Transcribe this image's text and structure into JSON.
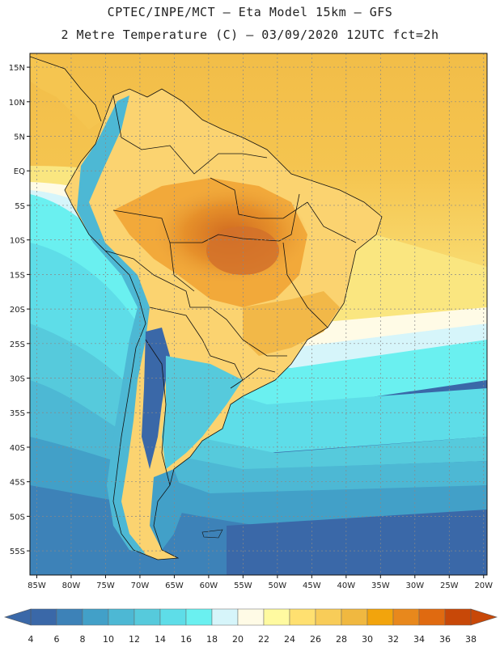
{
  "header": {
    "line1": "CPTEC/INPE/MCT –  Eta Model 15km – GFS",
    "line2": "2 Metre Temperature (C) – 03/09/2020 12UTC fct=2h"
  },
  "axes": {
    "lat_labels": [
      "15N",
      "10N",
      "5N",
      "EQ",
      "5S",
      "10S",
      "15S",
      "20S",
      "25S",
      "30S",
      "35S",
      "40S",
      "45S",
      "50S",
      "55S"
    ],
    "lat_values": [
      15,
      10,
      5,
      0,
      -5,
      -10,
      -15,
      -20,
      -25,
      -30,
      -35,
      -40,
      -45,
      -50,
      -55
    ],
    "lon_labels": [
      "85W",
      "80W",
      "75W",
      "70W",
      "65W",
      "60W",
      "55W",
      "50W",
      "45W",
      "40W",
      "35W",
      "30W",
      "25W",
      "20W"
    ],
    "lon_values": [
      -85,
      -80,
      -75,
      -70,
      -65,
      -60,
      -55,
      -50,
      -45,
      -40,
      -35,
      -30,
      -25,
      -20
    ],
    "lat_range": [
      -58.5,
      17.0
    ],
    "lon_range": [
      -86.0,
      -19.5
    ]
  },
  "colorbar": {
    "labels": [
      "4",
      "6",
      "8",
      "10",
      "12",
      "14",
      "16",
      "18",
      "20",
      "22",
      "24",
      "26",
      "28",
      "30",
      "32",
      "34",
      "36",
      "38"
    ],
    "colors": [
      "#3a68a8",
      "#3d82b8",
      "#42a0c8",
      "#4db8d4",
      "#56cadc",
      "#5edde8",
      "#6af0f0",
      "#d6f5fa",
      "#fffbe6",
      "#fffaa0",
      "#ffe070",
      "#f8cc58",
      "#f0b840",
      "#f2a40c",
      "#e8881c",
      "#e06a10",
      "#c84808"
    ],
    "low_color": "#3a68a8",
    "high_color": "#c84808"
  }
}
